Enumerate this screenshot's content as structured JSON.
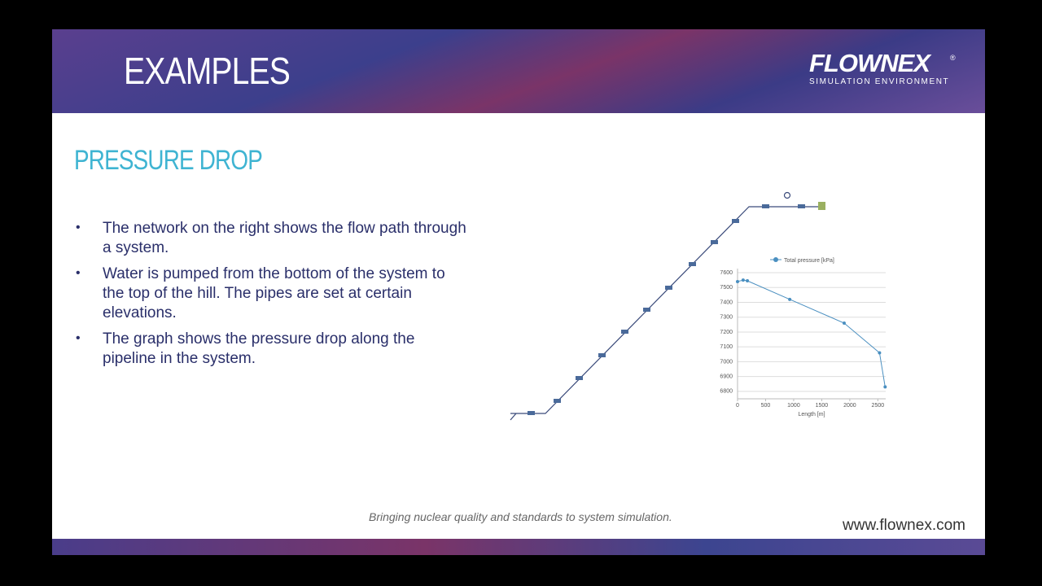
{
  "header": {
    "title": "EXAMPLES",
    "logo": "FLOWNEX",
    "logo_mark": "®",
    "logo_subtitle": "SIMULATION ENVIRONMENT"
  },
  "section_title": "PRESSURE DROP",
  "bullets": [
    "The network on the right shows the flow path through a system.",
    "Water is pumped from the bottom of the system to the top of the hill. The pipes are set at certain elevations.",
    "The graph shows the pressure drop along the pipeline in the system."
  ],
  "chart_data": {
    "type": "line",
    "x": [
      0,
      100,
      175,
      930,
      1900,
      2530,
      2630
    ],
    "series": [
      {
        "name": "Total pressure [kPa]",
        "color": "#4a8fc0",
        "values": [
          7540,
          7550,
          7545,
          7420,
          7260,
          7060,
          6830
        ]
      }
    ],
    "xlabel": "Length [m]",
    "xlim": [
      0,
      2640
    ],
    "ylim": [
      6750,
      7600
    ],
    "xticks": [
      0,
      500,
      1000,
      1500,
      2000,
      2500
    ],
    "yticks": [
      6800,
      6900,
      7000,
      7100,
      7200,
      7300,
      7400,
      7500,
      7600
    ],
    "grid": true
  },
  "footer": {
    "tagline": "Bringing nuclear quality and standards to system simulation.",
    "url": "www.flownex.com"
  }
}
